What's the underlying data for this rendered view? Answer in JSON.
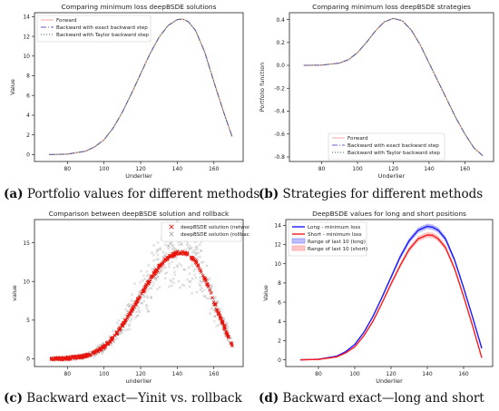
{
  "captions": [
    {
      "letter": "(a)",
      "text": " Portfolio values for different methods"
    },
    {
      "letter": "(b)",
      "text": " Strategies for different methods"
    },
    {
      "letter": "(c)",
      "text": " Backward exact—Yinit vs. rollback"
    },
    {
      "letter": "(d)",
      "text": " Backward exact—long and short"
    }
  ],
  "chart_data": [
    {
      "type": "line",
      "title": "Comparing minimum loss deepBSDE solutions",
      "xlabel": "Underlier",
      "ylabel": "Value",
      "xlim": [
        62,
        176
      ],
      "ylim": [
        -0.7,
        14.4
      ],
      "xticks": [
        80,
        100,
        120,
        140,
        160
      ],
      "yticks": [
        0,
        2,
        4,
        6,
        8,
        10,
        12,
        14
      ],
      "legend_position": "top-left",
      "grid": false,
      "series": [
        {
          "name": "Forward",
          "color": "#f4a6a6",
          "dash": "",
          "x": [
            70,
            80,
            90,
            95,
            100,
            105,
            110,
            115,
            120,
            125,
            130,
            135,
            140,
            143,
            146,
            150,
            155,
            160,
            165,
            170
          ],
          "y": [
            0,
            0.05,
            0.35,
            0.8,
            1.5,
            2.7,
            4.3,
            6.2,
            8.2,
            10.2,
            11.9,
            13.1,
            13.7,
            13.75,
            13.5,
            12.6,
            10.4,
            7.4,
            4.5,
            1.8
          ]
        },
        {
          "name": "Backward with exact backward step",
          "color": "#6a5acd",
          "dash": "6,2,1,2",
          "x": [
            70,
            80,
            90,
            95,
            100,
            105,
            110,
            115,
            120,
            125,
            130,
            135,
            140,
            143,
            146,
            150,
            155,
            160,
            165,
            170
          ],
          "y": [
            0,
            0.05,
            0.35,
            0.8,
            1.5,
            2.7,
            4.3,
            6.2,
            8.2,
            10.2,
            11.9,
            13.1,
            13.7,
            13.75,
            13.5,
            12.6,
            10.4,
            7.4,
            4.5,
            1.8
          ]
        },
        {
          "name": "Backward with Taylor backward step",
          "color": "#2e7d32",
          "dash": "1,2",
          "x": [
            70,
            80,
            90,
            95,
            100,
            105,
            110,
            115,
            120,
            125,
            130,
            135,
            140,
            143,
            146,
            150,
            155,
            160,
            165,
            170
          ],
          "y": [
            0,
            0.05,
            0.35,
            0.8,
            1.5,
            2.7,
            4.3,
            6.2,
            8.2,
            10.2,
            11.9,
            13.1,
            13.7,
            13.75,
            13.5,
            12.6,
            10.4,
            7.4,
            4.5,
            1.8
          ]
        }
      ]
    },
    {
      "type": "line",
      "title": "Comparing minimum loss deepBSDE strategies",
      "xlabel": "Underlier",
      "ylabel": "Portfolio function",
      "xlim": [
        62,
        176
      ],
      "ylim": [
        -0.84,
        0.46
      ],
      "xticks": [
        80,
        100,
        120,
        140,
        160
      ],
      "yticks": [
        -0.8,
        -0.6,
        -0.4,
        -0.2,
        0.0,
        0.2,
        0.4
      ],
      "legend_position": "lower-left",
      "grid": false,
      "series": [
        {
          "name": "Forward",
          "color": "#f4a6a6",
          "dash": "",
          "x": [
            70,
            80,
            90,
            95,
            100,
            105,
            110,
            115,
            120,
            125,
            130,
            135,
            140,
            145,
            150,
            155,
            160,
            165,
            170
          ],
          "y": [
            0,
            0.002,
            0.02,
            0.05,
            0.11,
            0.2,
            0.3,
            0.38,
            0.41,
            0.39,
            0.31,
            0.18,
            0.02,
            -0.14,
            -0.3,
            -0.46,
            -0.6,
            -0.72,
            -0.79
          ]
        },
        {
          "name": "Backward with exact backward step",
          "color": "#6a5acd",
          "dash": "6,2,1,2",
          "x": [
            70,
            80,
            90,
            95,
            100,
            105,
            110,
            115,
            120,
            125,
            130,
            135,
            140,
            145,
            150,
            155,
            160,
            165,
            170
          ],
          "y": [
            0,
            0.002,
            0.02,
            0.05,
            0.11,
            0.2,
            0.3,
            0.38,
            0.41,
            0.39,
            0.31,
            0.18,
            0.02,
            -0.14,
            -0.3,
            -0.46,
            -0.6,
            -0.72,
            -0.79
          ]
        },
        {
          "name": "Backward with Taylor backward step",
          "color": "#2e7d32",
          "dash": "1,2",
          "x": [
            70,
            80,
            90,
            95,
            100,
            105,
            110,
            115,
            120,
            125,
            130,
            135,
            140,
            145,
            150,
            155,
            160,
            165,
            170
          ],
          "y": [
            0,
            0.002,
            0.02,
            0.05,
            0.11,
            0.2,
            0.3,
            0.38,
            0.41,
            0.39,
            0.31,
            0.18,
            0.02,
            -0.14,
            -0.3,
            -0.46,
            -0.6,
            -0.72,
            -0.79
          ]
        }
      ]
    },
    {
      "type": "scatter",
      "title": "Comparison between deepBSDE solution and rollback",
      "xlabel": "underlier",
      "ylabel": "value",
      "xlim": [
        62,
        176
      ],
      "ylim": [
        -1,
        18
      ],
      "xticks": [
        80,
        100,
        120,
        140,
        160
      ],
      "yticks": [
        0,
        5,
        10,
        15
      ],
      "legend_position": "top-right",
      "grid": false,
      "curve_x": [
        70,
        80,
        90,
        95,
        100,
        105,
        110,
        115,
        120,
        125,
        130,
        135,
        140,
        143,
        146,
        150,
        155,
        160,
        165,
        170
      ],
      "curve_y": [
        0,
        0.05,
        0.35,
        0.8,
        1.5,
        2.7,
        4.3,
        6.2,
        8.2,
        10.2,
        11.9,
        13.1,
        13.7,
        13.75,
        13.5,
        12.6,
        10.4,
        7.4,
        4.5,
        1.8
      ],
      "series": [
        {
          "name": "deepBSDE solution (network)",
          "color": "#e8140c",
          "marker": "x"
        },
        {
          "name": "deepBSDE solution (rollback)",
          "color": "#a8a8a8",
          "marker": "x"
        }
      ]
    },
    {
      "type": "line",
      "title": "DeepBSDE values for long and short positions",
      "xlabel": "Underlier",
      "ylabel": "Value",
      "xlim": [
        62,
        176
      ],
      "ylim": [
        -0.7,
        14.6
      ],
      "xticks": [
        80,
        100,
        120,
        140,
        160
      ],
      "yticks": [
        0,
        2,
        4,
        6,
        8,
        10,
        12,
        14
      ],
      "legend_position": "top-left",
      "grid": false,
      "series": [
        {
          "name": "Long - minimum loss",
          "color": "#1a1aff",
          "x": [
            70,
            80,
            90,
            95,
            100,
            105,
            110,
            115,
            120,
            125,
            130,
            135,
            140,
            143,
            146,
            150,
            155,
            160,
            165,
            170
          ],
          "y": [
            0,
            0.06,
            0.38,
            0.85,
            1.6,
            2.85,
            4.5,
            6.5,
            8.6,
            10.7,
            12.4,
            13.5,
            13.9,
            13.8,
            13.5,
            12.6,
            10.4,
            7.5,
            4.4,
            1.2
          ]
        },
        {
          "name": "Short - minimum loss",
          "color": "#ff1a1a",
          "x": [
            70,
            80,
            90,
            95,
            100,
            105,
            110,
            115,
            120,
            125,
            130,
            135,
            140,
            143,
            146,
            150,
            155,
            160,
            165,
            170
          ],
          "y": [
            0,
            0.04,
            0.3,
            0.72,
            1.35,
            2.5,
            4.0,
            5.9,
            7.9,
            9.8,
            11.5,
            12.6,
            13.0,
            12.95,
            12.6,
            11.7,
            9.5,
            6.6,
            3.5,
            0.2
          ]
        },
        {
          "name": "Range of last 10 (long)",
          "color": "#8080ff",
          "band": true
        },
        {
          "name": "Range of last 10 (short)",
          "color": "#ff9090",
          "band": true
        }
      ]
    }
  ]
}
